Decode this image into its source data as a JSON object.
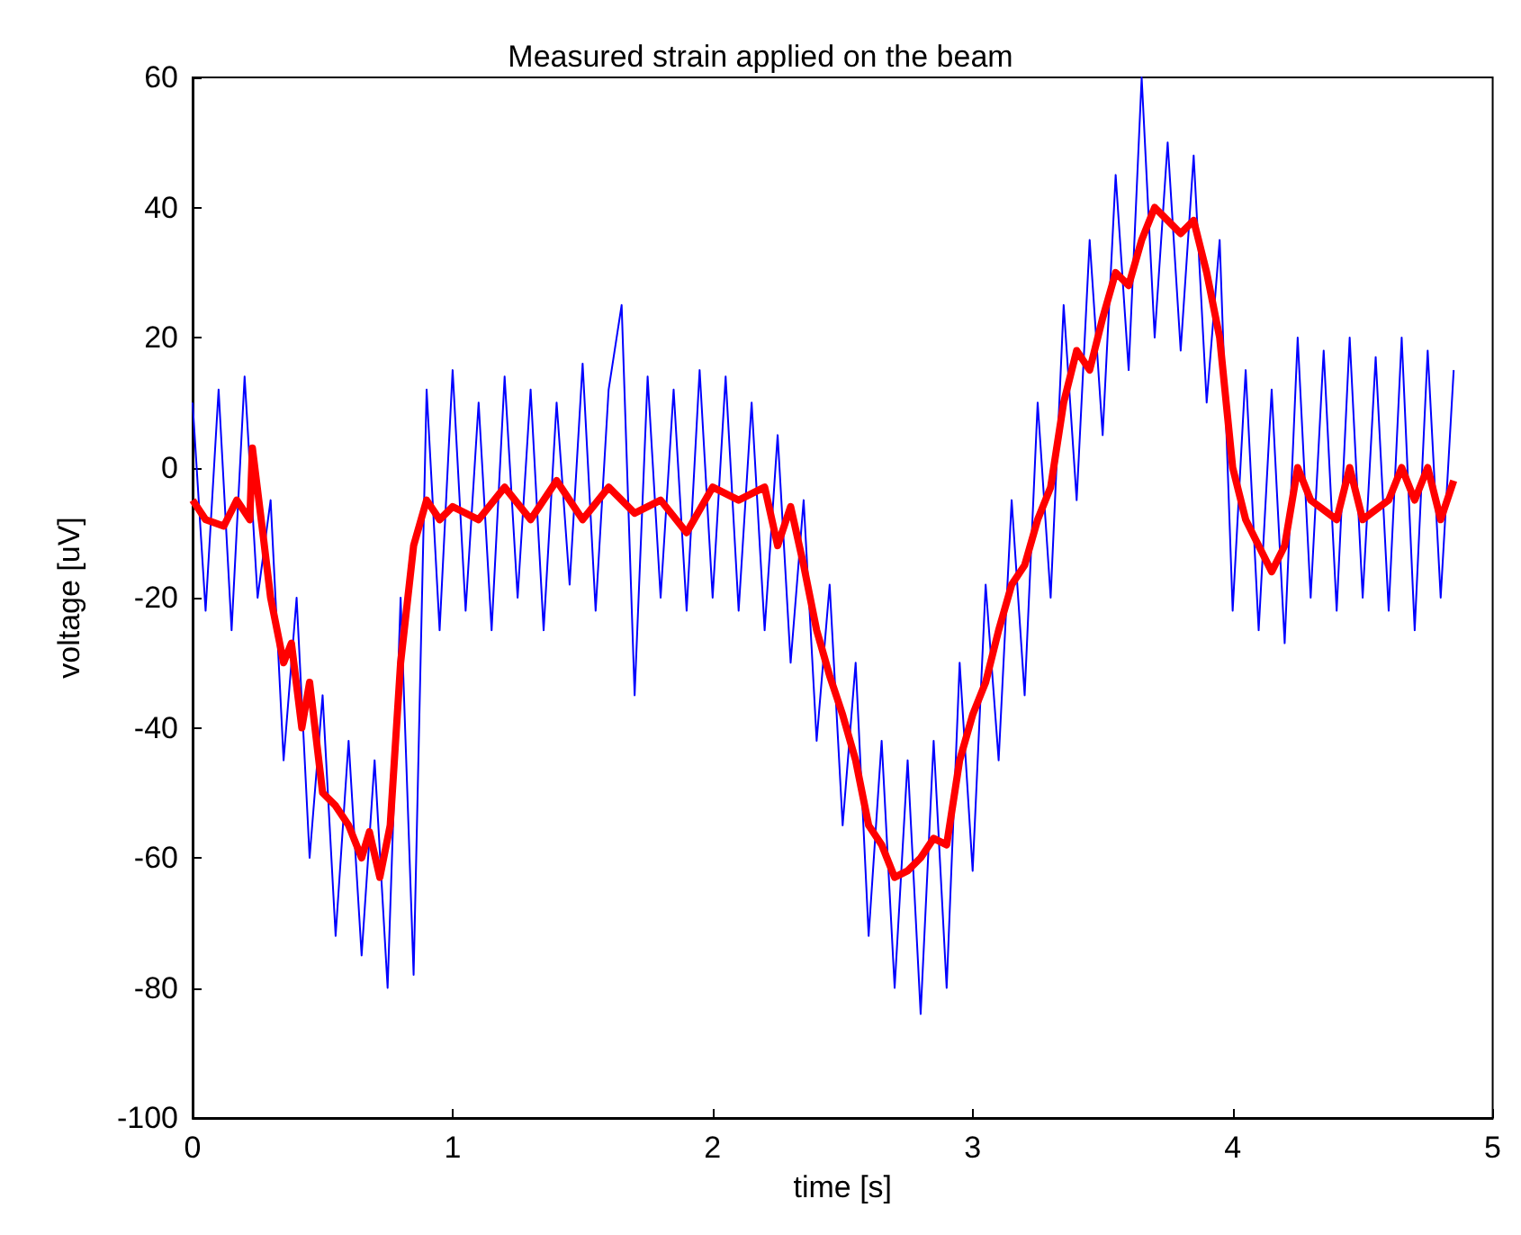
{
  "chart_data": {
    "type": "line",
    "title": "Measured strain applied on the beam",
    "xlabel": "time [s]",
    "ylabel": "voltage [uV]",
    "xlim": [
      0,
      5
    ],
    "xticks": [
      0,
      1,
      2,
      3,
      4,
      5
    ],
    "ylim": [
      -100,
      60
    ],
    "yticks": [
      -100,
      -80,
      -60,
      -40,
      -20,
      0,
      20,
      40,
      60
    ],
    "grid": false,
    "marker": "none",
    "line_style": "solid",
    "series": [
      {
        "color": "#0000ff",
        "x": [
          0,
          0.05,
          0.1,
          0.15,
          0.2,
          0.25,
          0.3,
          0.35,
          0.4,
          0.45,
          0.5,
          0.55,
          0.6,
          0.65,
          0.7,
          0.75,
          0.8,
          0.85,
          0.9,
          0.95,
          1.0,
          1.05,
          1.1,
          1.15,
          1.2,
          1.25,
          1.3,
          1.35,
          1.4,
          1.45,
          1.5,
          1.55,
          1.6,
          1.65,
          1.7,
          1.75,
          1.8,
          1.85,
          1.9,
          1.95,
          2.0,
          2.05,
          2.1,
          2.15,
          2.2,
          2.25,
          2.3,
          2.35,
          2.4,
          2.45,
          2.5,
          2.55,
          2.6,
          2.65,
          2.7,
          2.75,
          2.8,
          2.85,
          2.9,
          2.95,
          3.0,
          3.05,
          3.1,
          3.15,
          3.2,
          3.25,
          3.3,
          3.35,
          3.4,
          3.45,
          3.5,
          3.55,
          3.6,
          3.65,
          3.7,
          3.75,
          3.8,
          3.85,
          3.9,
          3.95,
          4.0,
          4.05,
          4.1,
          4.15,
          4.2,
          4.25,
          4.3,
          4.35,
          4.4,
          4.45,
          4.5,
          4.55,
          4.6,
          4.65,
          4.7,
          4.75,
          4.8,
          4.85
        ],
        "values": [
          10,
          -22,
          12,
          -25,
          14,
          -20,
          -5,
          -45,
          -20,
          -60,
          -35,
          -72,
          -42,
          -75,
          -45,
          -80,
          -20,
          -78,
          12,
          -25,
          15,
          -22,
          10,
          -25,
          14,
          -20,
          12,
          -25,
          10,
          -18,
          16,
          -22,
          12,
          25,
          -35,
          14,
          -20,
          12,
          -22,
          15,
          -20,
          14,
          -22,
          10,
          -25,
          5,
          -30,
          -5,
          -42,
          -18,
          -55,
          -30,
          -72,
          -42,
          -80,
          -45,
          -84,
          -42,
          -80,
          -30,
          -62,
          -18,
          -45,
          -5,
          -35,
          10,
          -20,
          25,
          -5,
          35,
          5,
          45,
          15,
          60,
          20,
          50,
          18,
          48,
          10,
          35,
          -22,
          15,
          -25,
          12,
          -27,
          20,
          -20,
          18,
          -22,
          20,
          -20,
          17,
          -22,
          20,
          -25,
          18,
          -20,
          15
        ]
      },
      {
        "color": "#ff0000",
        "x": [
          0,
          0.05,
          0.12,
          0.17,
          0.22,
          0.23,
          0.27,
          0.3,
          0.35,
          0.38,
          0.42,
          0.45,
          0.5,
          0.55,
          0.6,
          0.65,
          0.68,
          0.72,
          0.76,
          0.8,
          0.85,
          0.9,
          0.95,
          1.0,
          1.1,
          1.2,
          1.3,
          1.4,
          1.5,
          1.6,
          1.7,
          1.8,
          1.9,
          2.0,
          2.1,
          2.2,
          2.25,
          2.3,
          2.35,
          2.4,
          2.45,
          2.5,
          2.55,
          2.6,
          2.65,
          2.7,
          2.75,
          2.8,
          2.85,
          2.9,
          2.95,
          3.0,
          3.05,
          3.1,
          3.15,
          3.2,
          3.25,
          3.3,
          3.35,
          3.4,
          3.45,
          3.5,
          3.55,
          3.6,
          3.65,
          3.7,
          3.75,
          3.8,
          3.85,
          3.9,
          3.95,
          4.0,
          4.05,
          4.1,
          4.15,
          4.2,
          4.25,
          4.3,
          4.4,
          4.45,
          4.5,
          4.6,
          4.65,
          4.7,
          4.75,
          4.8,
          4.85
        ],
        "values": [
          -5,
          -8,
          -9,
          -5,
          -8,
          3,
          -10,
          -20,
          -30,
          -27,
          -40,
          -33,
          -50,
          -52,
          -55,
          -60,
          -56,
          -63,
          -55,
          -30,
          -12,
          -5,
          -8,
          -6,
          -8,
          -3,
          -8,
          -2,
          -8,
          -3,
          -7,
          -5,
          -10,
          -3,
          -5,
          -3,
          -12,
          -6,
          -15,
          -25,
          -32,
          -38,
          -45,
          -55,
          -58,
          -63,
          -62,
          -60,
          -57,
          -58,
          -45,
          -38,
          -33,
          -25,
          -18,
          -15,
          -8,
          -3,
          10,
          18,
          15,
          23,
          30,
          28,
          35,
          40,
          38,
          36,
          38,
          30,
          20,
          0,
          -8,
          -12,
          -16,
          -12,
          0,
          -5,
          -8,
          0,
          -8,
          -5,
          0,
          -5,
          0,
          -8,
          -2
        ]
      }
    ]
  }
}
